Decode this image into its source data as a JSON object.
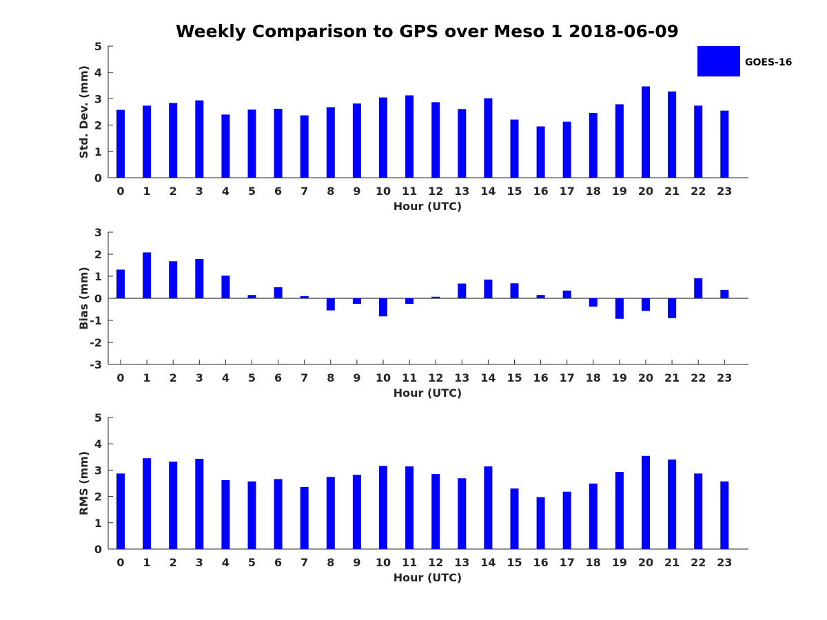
{
  "chart_data": {
    "title": "Weekly Comparison to GPS over Meso 1 2018-06-09",
    "legend": {
      "label": "GOES-16",
      "color": "#0000ff",
      "placement": "top-right"
    },
    "bar_color": "#0000ff",
    "panels": [
      {
        "type": "bar",
        "ylabel": "Std. Dev. (mm)",
        "xlabel": "Hour (UTC)",
        "ylim": [
          0,
          5
        ],
        "yticks": [
          0,
          1,
          2,
          3,
          4,
          5
        ],
        "categories": [
          "0",
          "1",
          "2",
          "3",
          "4",
          "5",
          "6",
          "7",
          "8",
          "9",
          "10",
          "11",
          "12",
          "13",
          "14",
          "15",
          "16",
          "17",
          "18",
          "19",
          "20",
          "21",
          "22",
          "23"
        ],
        "values": [
          2.58,
          2.74,
          2.84,
          2.94,
          2.4,
          2.59,
          2.62,
          2.37,
          2.68,
          2.82,
          3.05,
          3.13,
          2.87,
          2.61,
          3.02,
          2.21,
          1.95,
          2.13,
          2.46,
          2.79,
          3.47,
          3.28,
          2.74,
          2.55
        ]
      },
      {
        "type": "bar",
        "ylabel": "Bias (mm)",
        "xlabel": "Hour (UTC)",
        "ylim": [
          -3,
          3
        ],
        "yticks": [
          -3,
          -2,
          -1,
          0,
          1,
          2,
          3
        ],
        "categories": [
          "0",
          "1",
          "2",
          "3",
          "4",
          "5",
          "6",
          "7",
          "8",
          "9",
          "10",
          "11",
          "12",
          "13",
          "14",
          "15",
          "16",
          "17",
          "18",
          "19",
          "20",
          "21",
          "22",
          "23"
        ],
        "values": [
          1.3,
          2.08,
          1.68,
          1.78,
          1.03,
          0.15,
          0.5,
          0.1,
          -0.55,
          -0.25,
          -0.82,
          -0.25,
          0.07,
          0.67,
          0.85,
          0.68,
          0.15,
          0.35,
          -0.38,
          -0.93,
          -0.57,
          -0.9,
          0.91,
          0.38
        ]
      },
      {
        "type": "bar",
        "ylabel": "RMS (mm)",
        "xlabel": "Hour (UTC)",
        "ylim": [
          0,
          5
        ],
        "yticks": [
          0,
          1,
          2,
          3,
          4,
          5
        ],
        "categories": [
          "0",
          "1",
          "2",
          "3",
          "4",
          "5",
          "6",
          "7",
          "8",
          "9",
          "10",
          "11",
          "12",
          "13",
          "14",
          "15",
          "16",
          "17",
          "18",
          "19",
          "20",
          "21",
          "22",
          "23"
        ],
        "values": [
          2.87,
          3.45,
          3.32,
          3.43,
          2.62,
          2.57,
          2.66,
          2.36,
          2.74,
          2.82,
          3.16,
          3.14,
          2.85,
          2.69,
          3.14,
          2.3,
          1.97,
          2.18,
          2.49,
          2.93,
          3.54,
          3.4,
          2.87,
          2.57
        ]
      }
    ]
  }
}
